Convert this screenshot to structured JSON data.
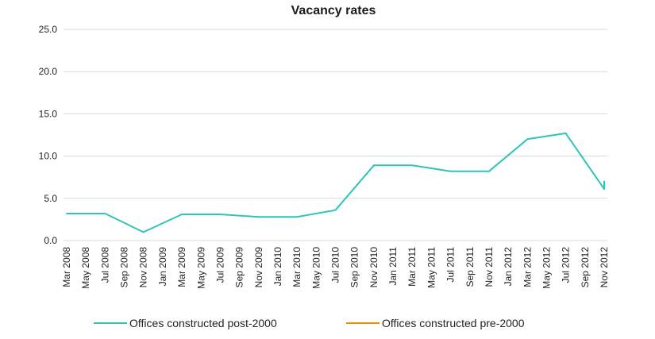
{
  "chart_data": {
    "type": "line",
    "title": "Vacancy rates",
    "xlabel": "",
    "ylabel": "",
    "ylim": [
      0,
      25
    ],
    "yticks": [
      "0.0",
      "5.0",
      "10.0",
      "15.0",
      "20.0",
      "25.0"
    ],
    "grid": "horizontal",
    "legend": "bottom",
    "categories": [
      "Mar 2008",
      "May 2008",
      "Jul 2008",
      "Sep 2008",
      "Nov 2008",
      "Jan 2009",
      "Mar 2009",
      "May 2009",
      "Jul 2009",
      "Sep 2009",
      "Nov 2009",
      "Jan 2010",
      "Mar 2010",
      "May 2010",
      "Jul 2010",
      "Sep 2010",
      "Nov 2010",
      "Jan 2011",
      "Mar 2011",
      "May 2011",
      "Jul 2011",
      "Sep 2011",
      "Nov 2011",
      "Jan 2012",
      "Mar 2012",
      "May 2012",
      "Jul 2012",
      "Sep 2012",
      "Nov 2012"
    ],
    "series": [
      {
        "name": "Offices constructed post-2000",
        "color": "#2ec4b6",
        "points": [
          {
            "x": "Mar 2008",
            "y": 3.2
          },
          {
            "x": "Jul 2008",
            "y": 3.2
          },
          {
            "x": "Nov 2008",
            "y": 1.0
          },
          {
            "x": "Mar 2009",
            "y": 3.1
          },
          {
            "x": "Jul 2009",
            "y": 3.1
          },
          {
            "x": "Nov 2009",
            "y": 2.8
          },
          {
            "x": "Mar 2010",
            "y": 2.8
          },
          {
            "x": "Jul 2010",
            "y": 3.6
          },
          {
            "x": "Nov 2010",
            "y": 8.9
          },
          {
            "x": "Mar 2011",
            "y": 8.9
          },
          {
            "x": "Jul 2011",
            "y": 8.2
          },
          {
            "x": "Nov 2011",
            "y": 8.2
          },
          {
            "x": "Mar 2012",
            "y": 12.0
          },
          {
            "x": "Jul 2012",
            "y": 12.7
          },
          {
            "x": "Nov 2012",
            "y": 6.1
          },
          {
            "x": "Nov 2012",
            "y": 7.0
          }
        ]
      },
      {
        "name": "Offices constructed pre-2000",
        "color": "#f08c00",
        "points": []
      }
    ]
  }
}
